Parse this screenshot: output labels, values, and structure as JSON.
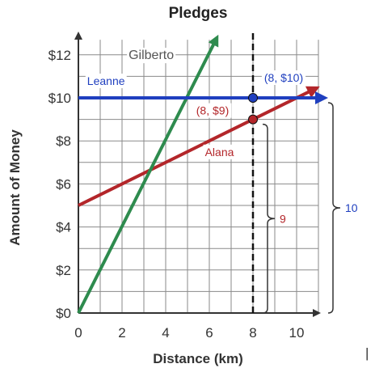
{
  "chart_data": {
    "type": "line",
    "title": "Pledges",
    "xlabel": "Distance (km)",
    "ylabel": "Amount of Money",
    "xlim": [
      0,
      11
    ],
    "ylim": [
      0,
      12.7
    ],
    "x_ticks": [
      "0",
      "2",
      "4",
      "6",
      "8",
      "10"
    ],
    "y_ticks": [
      "$0",
      "$2",
      "$4",
      "$6",
      "$8",
      "$10",
      "$12"
    ],
    "grid": true,
    "series": [
      {
        "name": "Gilberto",
        "color": "#2e8b4e",
        "points": [
          [
            0,
            0
          ],
          [
            6.3,
            12.7
          ]
        ]
      },
      {
        "name": "Leanne",
        "color": "#1f3fbf",
        "points": [
          [
            0,
            10
          ],
          [
            11,
            10
          ]
        ]
      },
      {
        "name": "Alana",
        "color": "#b3262a",
        "points": [
          [
            0,
            5
          ],
          [
            10.8,
            10.4
          ]
        ]
      }
    ],
    "vertical_line": {
      "x": 8,
      "style": "dashed"
    },
    "highlighted_points": [
      {
        "label": "(8, $10)",
        "x": 8,
        "y": 10,
        "color": "#1f3fbf"
      },
      {
        "label": "(8, $9)",
        "x": 8,
        "y": 9,
        "color": "#b3262a"
      }
    ],
    "braces": [
      {
        "label": "9",
        "from": 0,
        "to": 9,
        "color": "#b3262a"
      },
      {
        "label": "10",
        "from": 0,
        "to": 10,
        "color": "#1f3fbf"
      }
    ]
  },
  "extra_text": "|"
}
